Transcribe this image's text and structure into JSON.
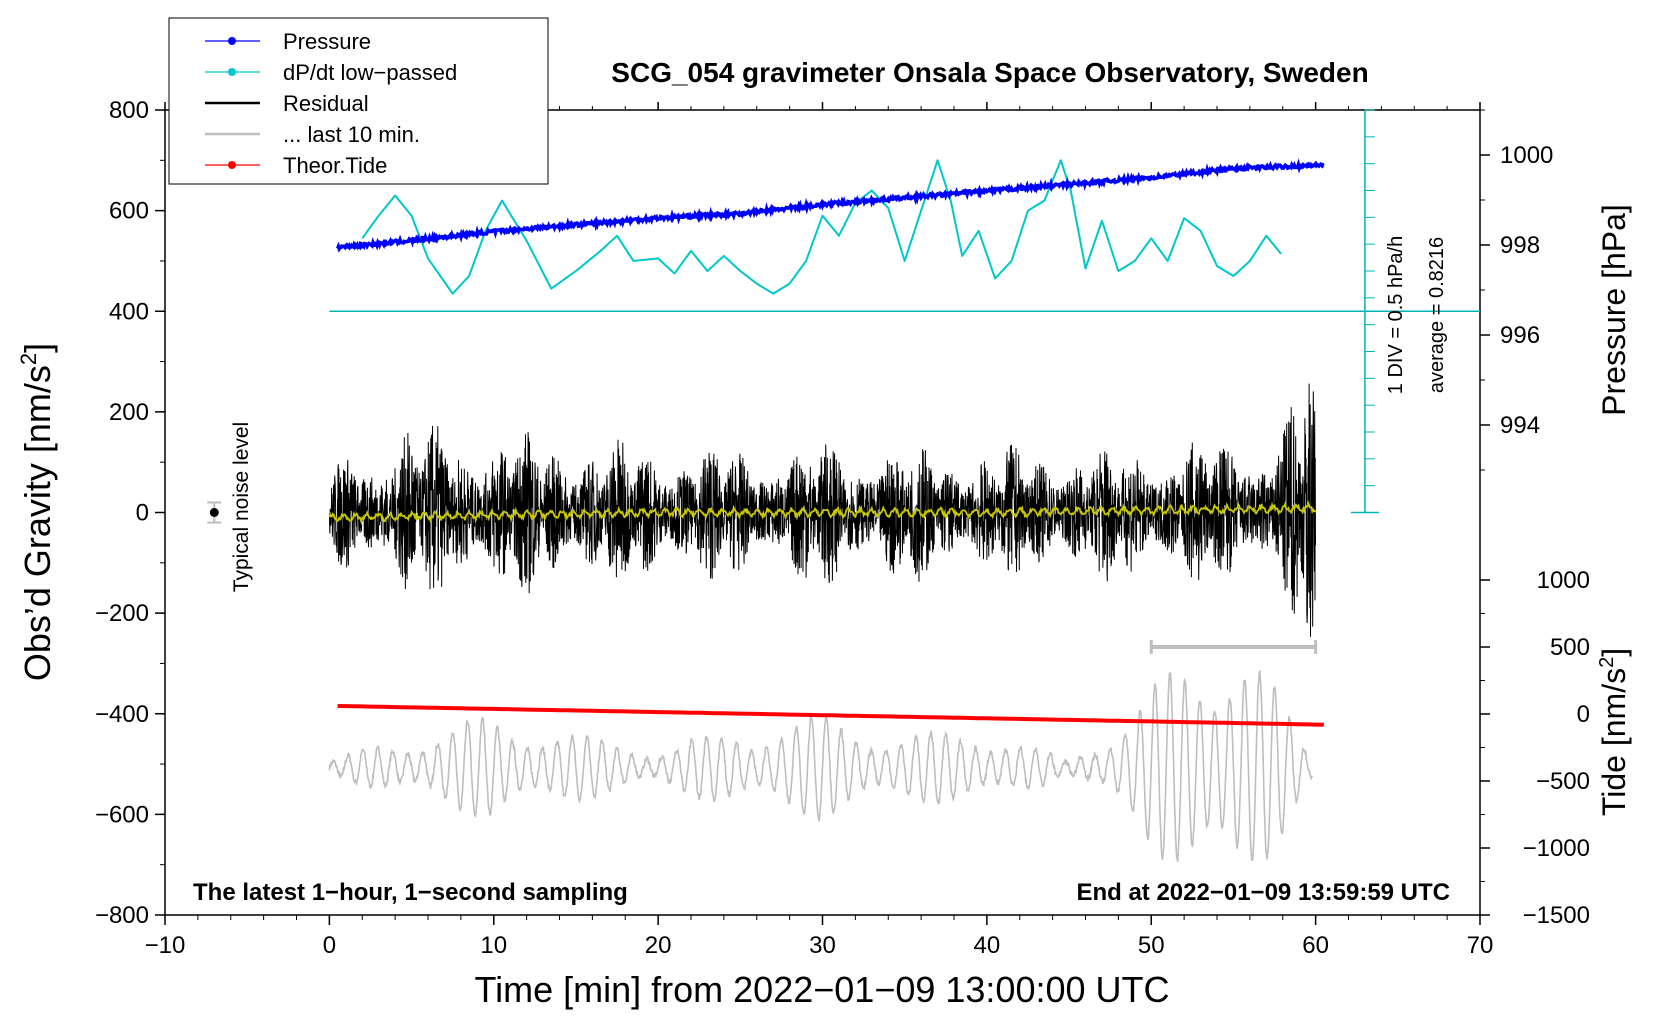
{
  "chart_data": {
    "type": "line",
    "title": "SCG_054 gravimeter Onsala Space Observatory, Sweden",
    "xlabel": "Time [min] from 2022−01−09 13:00:00 UTC",
    "ylabel_left": "Obs’d Gravity [nm/s",
    "ylabel_left_sup": "2",
    "ylabel_left_end": "]",
    "ylabel_pressure": "Pressure [hPa]",
    "ylabel_tide": "Tide [nm/s",
    "ylabel_tide_sup": "2",
    "ylabel_tide_end": "]",
    "xlim": [
      -10,
      70
    ],
    "ylim_left": [
      -800,
      800
    ],
    "pressure_lim": [
      992,
      1001
    ],
    "tide_lim": [
      -1500,
      1000
    ],
    "x_ticks": [
      {
        "v": -10,
        "label": "−10"
      },
      {
        "v": 0,
        "label": "0"
      },
      {
        "v": 10,
        "label": "10"
      },
      {
        "v": 20,
        "label": "20"
      },
      {
        "v": 30,
        "label": "30"
      },
      {
        "v": 40,
        "label": "40"
      },
      {
        "v": 50,
        "label": "50"
      },
      {
        "v": 60,
        "label": "60"
      },
      {
        "v": 70,
        "label": "70"
      }
    ],
    "y_left_ticks": [
      {
        "v": 800,
        "label": "800"
      },
      {
        "v": 600,
        "label": "600"
      },
      {
        "v": 400,
        "label": "400"
      },
      {
        "v": 200,
        "label": "200"
      },
      {
        "v": 0,
        "label": "0"
      },
      {
        "v": -200,
        "label": "−200"
      },
      {
        "v": -400,
        "label": "−400"
      },
      {
        "v": -600,
        "label": "−600"
      },
      {
        "v": -800,
        "label": "−800"
      }
    ],
    "pressure_ticks": [
      {
        "v": 1000,
        "label": "1000"
      },
      {
        "v": 998,
        "label": "998"
      },
      {
        "v": 996,
        "label": "996"
      },
      {
        "v": 994,
        "label": "994"
      }
    ],
    "tide_ticks": [
      {
        "v": 1000,
        "label": "1000"
      },
      {
        "v": 500,
        "label": "500"
      },
      {
        "v": 0,
        "label": "0"
      },
      {
        "v": -500,
        "label": "−500"
      },
      {
        "v": -1000,
        "label": "−1000"
      },
      {
        "v": -1500,
        "label": "−1500"
      }
    ],
    "legend": {
      "position": "top-left",
      "entries": [
        {
          "label": "Pressure",
          "color": "#0000ff",
          "marker": true
        },
        {
          "label": "dP/dt low−passed",
          "color": "#00c8c8",
          "marker": true
        },
        {
          "label": "Residual",
          "color": "#000000",
          "marker": false
        },
        {
          "label": "... last 10 min.",
          "color": "#bebebe",
          "marker": false
        },
        {
          "label": "Theor.Tide",
          "color": "#ff0000",
          "marker": true
        }
      ]
    },
    "annotations": {
      "bottom_left": "The latest 1−hour, 1−second sampling",
      "bottom_right": "End at 2022−01−09 13:59:59 UTC",
      "noise_label": "Typical noise level",
      "dpdt_scale": "1 DIV = 0.5 hPa/h",
      "dpdt_average": "average = 0.8216"
    },
    "noise_bar": {
      "x": -7,
      "y": 0,
      "err": 20
    },
    "last10_bar": {
      "x_start": 50,
      "x_end": 60,
      "tide_value": 500
    },
    "dpdt_baseline_y": 400,
    "series": [
      {
        "name": "Pressure",
        "axis": "pressure",
        "color": "#0000ff",
        "x": [
          0.5,
          5,
          10,
          15,
          20,
          25,
          30,
          35,
          40,
          45,
          50,
          55,
          60.5
        ],
        "values": [
          997.95,
          998.1,
          998.3,
          998.45,
          998.6,
          998.7,
          998.9,
          999.05,
          999.2,
          999.35,
          999.5,
          999.7,
          999.78
        ]
      },
      {
        "name": "dP/dt low-passed",
        "axis": "gravity",
        "color": "#00c8c8",
        "x": [
          2,
          3,
          4,
          5,
          6,
          7.5,
          8.5,
          9.5,
          10.5,
          12,
          13.5,
          15,
          16.5,
          17.5,
          18.5,
          20,
          21,
          22,
          23,
          24,
          25,
          26,
          27,
          28,
          29,
          30,
          31,
          32,
          33,
          34,
          35,
          36,
          37,
          37.8,
          38.5,
          39.5,
          40.5,
          41.5,
          42.5,
          43.5,
          44.5,
          45.1,
          46,
          47,
          48,
          49,
          50,
          51,
          52,
          53,
          54,
          55,
          56,
          57,
          58
        ],
        "values": [
          545,
          590,
          630,
          590,
          505,
          435,
          470,
          560,
          620,
          540,
          445,
          480,
          520,
          550,
          500,
          505,
          475,
          520,
          480,
          510,
          480,
          455,
          435,
          455,
          500,
          590,
          550,
          615,
          640,
          605,
          500,
          600,
          700,
          620,
          510,
          560,
          465,
          500,
          600,
          620,
          700,
          640,
          485,
          580,
          480,
          500,
          545,
          500,
          585,
          560,
          490,
          470,
          500,
          550,
          510
        ]
      },
      {
        "name": "Residual",
        "axis": "gravity",
        "color": "#000000",
        "x": [
          0,
          5,
          10,
          15,
          20,
          25,
          30,
          35,
          40,
          45,
          50,
          55,
          58,
          59.5,
          60
        ],
        "values": [
          90,
          150,
          140,
          125,
          120,
          110,
          125,
          115,
          110,
          110,
          120,
          130,
          145,
          300,
          180
        ]
      },
      {
        "name": "Residual low-passed",
        "axis": "gravity",
        "color": "#c8c800",
        "x": [
          0,
          20,
          40,
          59,
          60
        ],
        "values": [
          -10,
          0,
          0,
          8,
          10
        ]
      },
      {
        "name": "... last 10 min.",
        "axis": "tide",
        "color": "#bebebe",
        "x": [
          0,
          5,
          10,
          15,
          20,
          25,
          30,
          35,
          40,
          45,
          50,
          55,
          60
        ],
        "values": [
          -450,
          -650,
          -800,
          -650,
          -550,
          -700,
          -800,
          -650,
          -700,
          -450,
          -1000,
          -1550,
          -450
        ]
      },
      {
        "name": "Theor.Tide",
        "axis": "tide",
        "color": "#ff0000",
        "x": [
          0.5,
          60.5
        ],
        "values": [
          60,
          -80
        ]
      }
    ]
  }
}
